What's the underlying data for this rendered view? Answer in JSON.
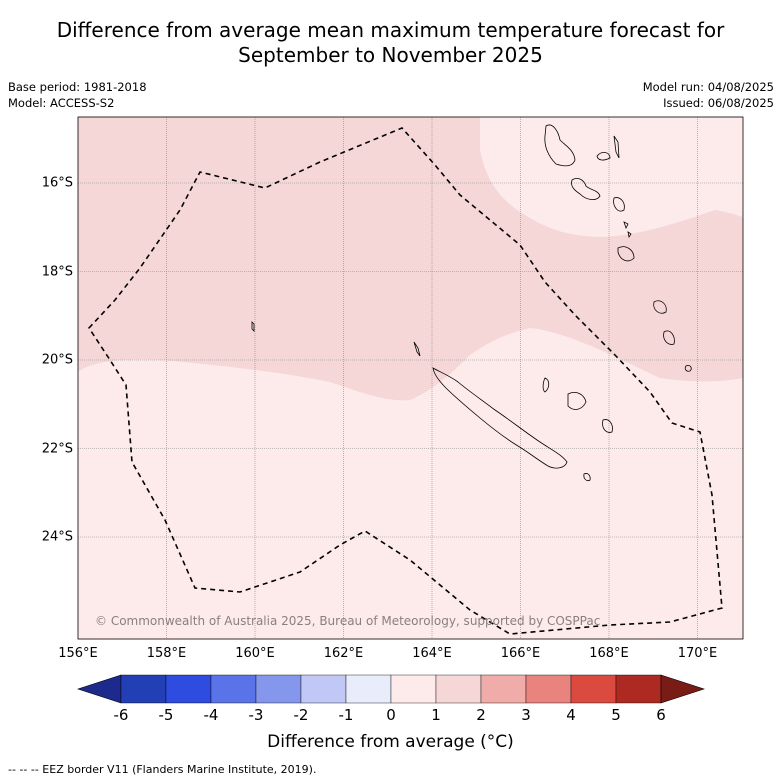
{
  "title_line1": "Difference from average mean maximum temperature forecast for",
  "title_line2": "September to November 2025",
  "meta": {
    "base_period": "Base period: 1981-2018",
    "model": "Model: ACCESS-S2",
    "model_run": "Model run: 04/08/2025",
    "issued": "Issued: 06/08/2025"
  },
  "copyright": "© Commonwealth of Australia 2025, Bureau of Meteorology, supported by COSPPac",
  "footnote": "--  --  -- EEZ border V11 (Flanders Marine Institute, 2019).",
  "colors": {
    "anomaly_0_1": "#fcebea",
    "anomaly_1_2": "#f5d7d7",
    "coast": "#000000",
    "eez": "#000000"
  },
  "chart_data": {
    "type": "heatmap",
    "region": "New Caledonia",
    "lon_range": [
      156,
      171
    ],
    "lat_range": [
      -26.4,
      -14.5
    ],
    "x_ticks": [
      "156°E",
      "158°E",
      "160°E",
      "162°E",
      "164°E",
      "166°E",
      "168°E",
      "170°E"
    ],
    "y_ticks": [
      "16°S",
      "18°S",
      "20°S",
      "22°S",
      "24°S"
    ],
    "legend": {
      "title": "Difference from average (°C)",
      "tick_labels": [
        "-6",
        "-5",
        "-4",
        "-3",
        "-2",
        "-1",
        "0",
        "1",
        "2",
        "3",
        "4",
        "5",
        "6"
      ],
      "bin_colors": [
        "#1b2a8c",
        "#223fb5",
        "#2f4ce0",
        "#5a73e8",
        "#8597ec",
        "#c2c8f5",
        "#e9ecfb",
        "#fcebea",
        "#f5d7d7",
        "#f0aca8",
        "#e8837e",
        "#db4a3f",
        "#ad2a22",
        "#7a1c16"
      ]
    },
    "zones": [
      {
        "range": "1 to 2",
        "color": "#f5d7d7",
        "area": "north and central"
      },
      {
        "range": "0 to 1",
        "color": "#fcebea",
        "area": "south and far north-east"
      }
    ]
  }
}
